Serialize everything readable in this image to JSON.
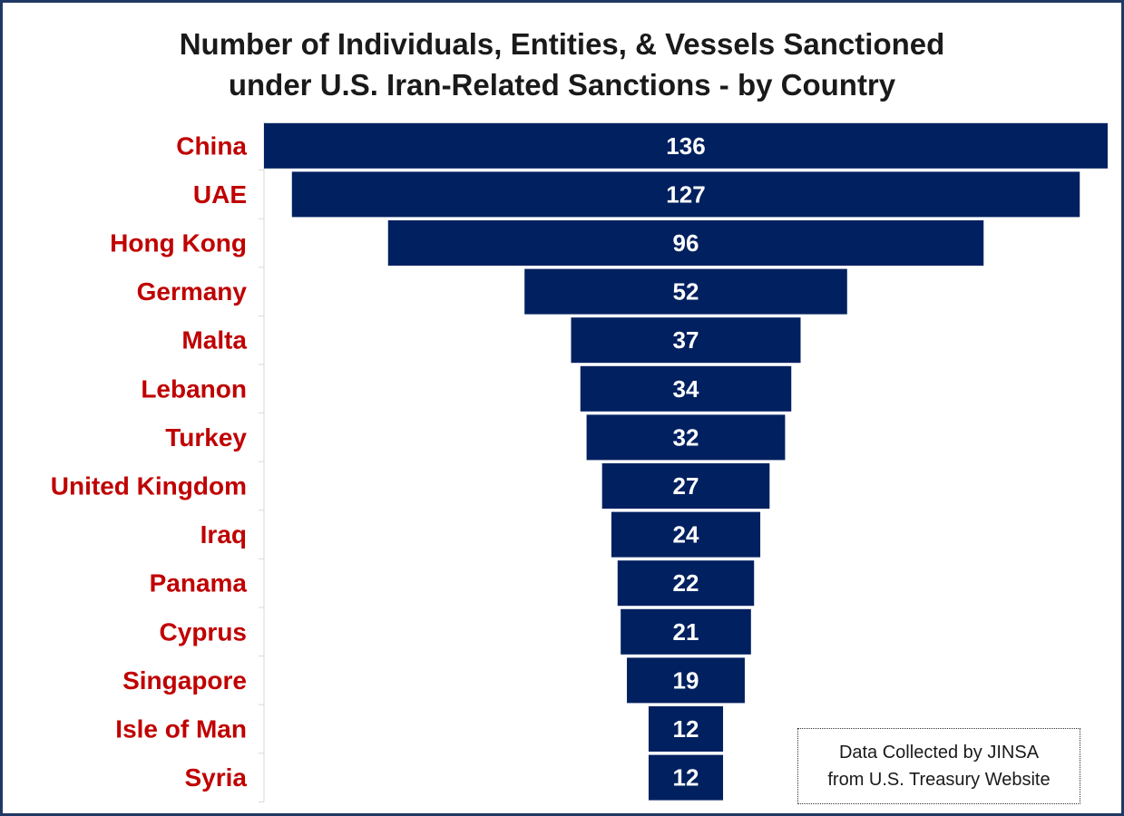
{
  "chart_data": {
    "type": "bar",
    "orientation": "horizontal",
    "layout": "funnel",
    "title_lines": [
      "Number of Individuals, Entities, & Vessels Sanctioned",
      "under U.S. Iran-Related Sanctions - by Country"
    ],
    "categories": [
      "China",
      "UAE",
      "Hong Kong",
      "Germany",
      "Malta",
      "Lebanon",
      "Turkey",
      "United Kingdom",
      "Iraq",
      "Panama",
      "Cyprus",
      "Singapore",
      "Isle of Man",
      "Syria"
    ],
    "values": [
      136,
      127,
      96,
      52,
      37,
      34,
      32,
      27,
      24,
      22,
      21,
      19,
      12,
      12
    ],
    "xlim": [
      0,
      136
    ],
    "grid": false,
    "legend": "none",
    "note_lines": [
      "Data Collected by JINSA",
      "from U.S. Treasury Website"
    ]
  },
  "colors": {
    "bar": "#002060",
    "category_label": "#c00000",
    "value_label": "#ffffff",
    "frame": "#1f3864"
  }
}
